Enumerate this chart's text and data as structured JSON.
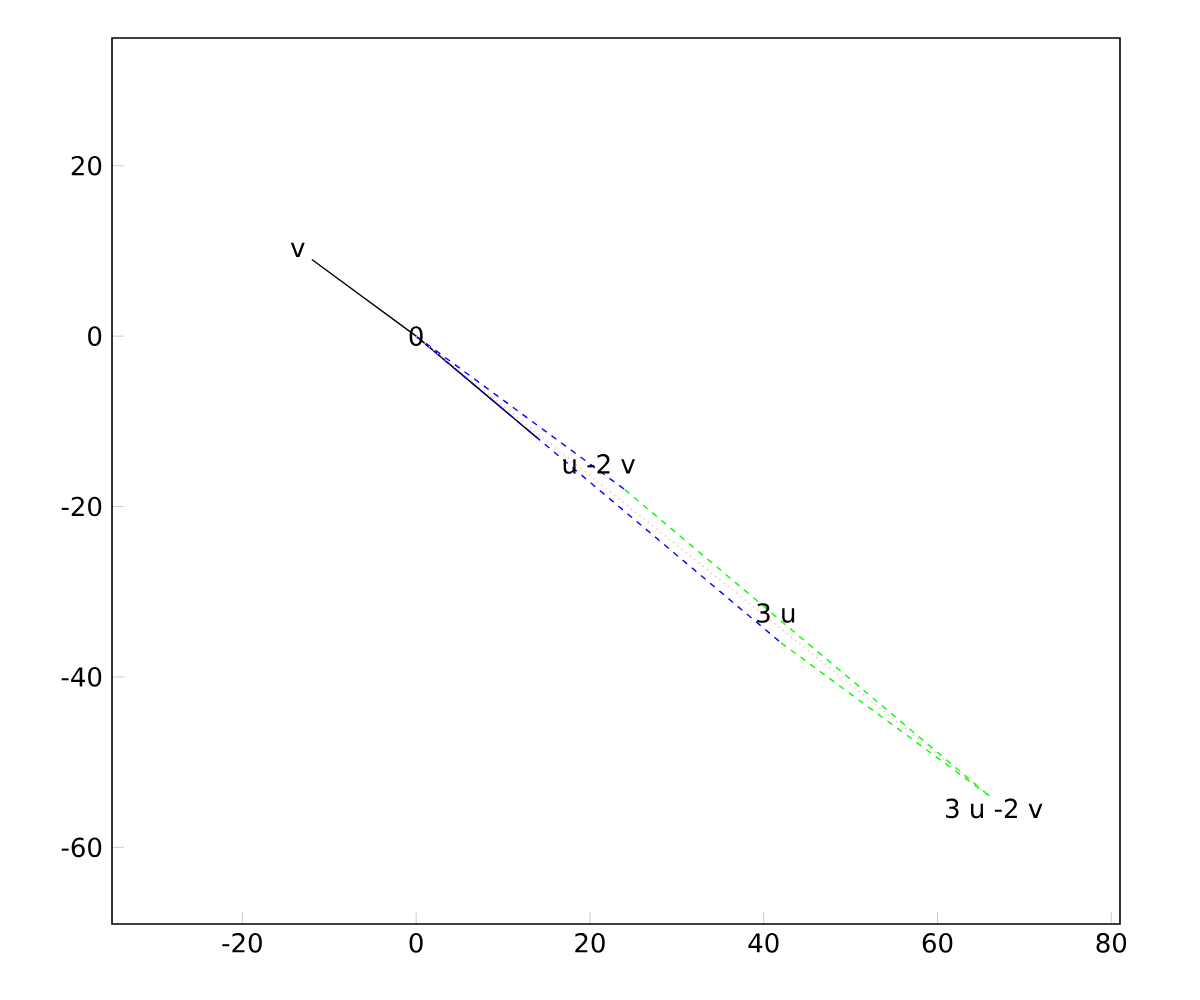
{
  "chart_data": {
    "type": "line",
    "series": [
      {
        "color": "#000000",
        "line_style": "solid",
        "x": [
          -12,
          0,
          14
        ],
        "values": [
          9,
          0,
          -12
        ]
      },
      {
        "color": "#0000ff",
        "line_style": "dashed",
        "x": [
          0,
          24
        ],
        "values": [
          0,
          -18
        ]
      },
      {
        "color": "#0000ff",
        "line_style": "dashed",
        "x": [
          0,
          42
        ],
        "values": [
          0,
          -36
        ]
      },
      {
        "color": "#00ff00",
        "line_style": "dashed",
        "x": [
          24,
          66
        ],
        "values": [
          -18,
          -54
        ]
      },
      {
        "color": "#00ff00",
        "line_style": "dashed",
        "x": [
          42,
          66
        ],
        "values": [
          -36,
          -54
        ]
      },
      {
        "color": "#ffb6c1",
        "line_style": "dotted",
        "x": [
          0,
          66
        ],
        "values": [
          0,
          -54
        ]
      }
    ],
    "annotations": [
      {
        "text": "v",
        "x": -12,
        "y": 9
      },
      {
        "text": "0",
        "x": 0,
        "y": 0
      },
      {
        "text": "u -2 v",
        "x": 21,
        "y": -15
      },
      {
        "text": "3 u",
        "x": 41.4,
        "y": -32.5
      },
      {
        "text": "3 u -2 v",
        "x": 66,
        "y": -54
      }
    ],
    "xlim": [
      -35,
      81
    ],
    "ylim": [
      -69,
      35
    ],
    "xticks": [
      -20,
      0,
      20,
      40,
      60,
      80
    ],
    "yticks": [
      -60,
      -40,
      -20,
      0,
      20
    ],
    "grid": false,
    "marker": "none"
  }
}
